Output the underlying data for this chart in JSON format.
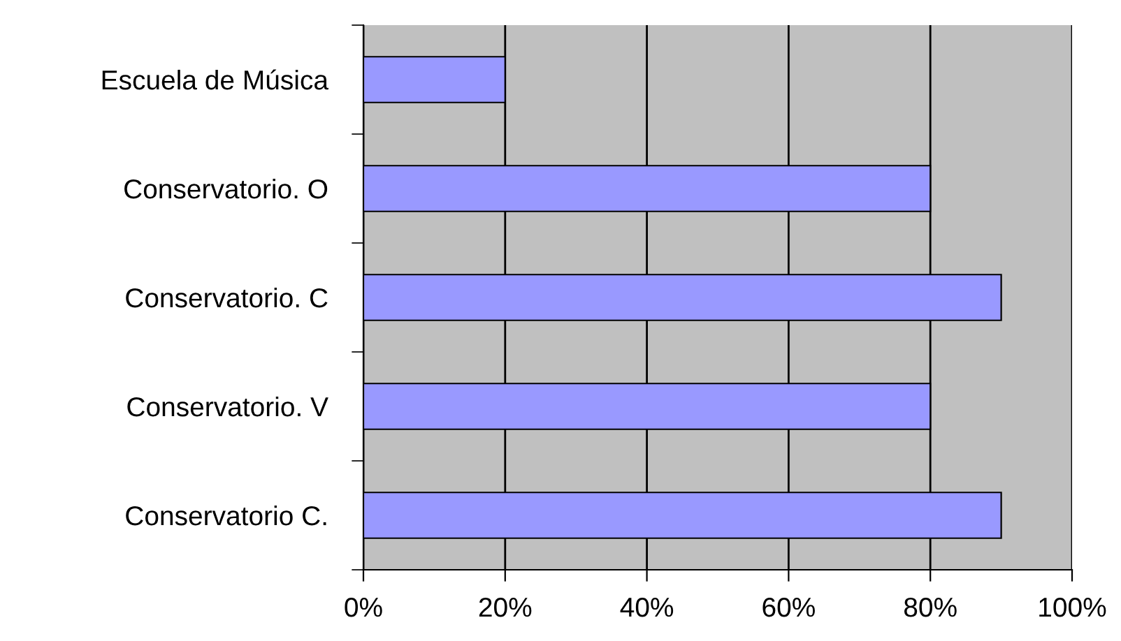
{
  "chart_data": {
    "type": "bar",
    "orientation": "horizontal",
    "categories": [
      "Escuela de Música",
      "Conservatorio. O",
      "Conservatorio. C",
      "Conservatorio. V",
      "Conservatorio C."
    ],
    "values": [
      20,
      80,
      90,
      80,
      90
    ],
    "color": "#9999ff",
    "xlim": [
      0,
      100
    ],
    "xticks": [
      {
        "value": 0,
        "label": "0%"
      },
      {
        "value": 20,
        "label": "20%"
      },
      {
        "value": 40,
        "label": "40%"
      },
      {
        "value": 60,
        "label": "60%"
      },
      {
        "value": 80,
        "label": "80%"
      },
      {
        "value": 100,
        "label": "100%"
      }
    ],
    "grid": "x"
  }
}
